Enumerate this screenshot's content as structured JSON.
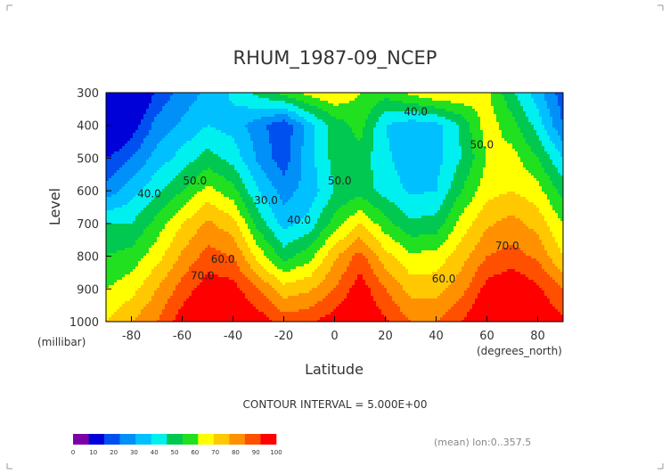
{
  "chart_data": {
    "type": "heatmap",
    "title": "RHUM_1987-09_NCEP",
    "xlabel": "Latitude",
    "ylabel": "Level",
    "y_units": "(millibar)",
    "x_units": "(degrees_north)",
    "x_ticks": [
      "-80",
      "-60",
      "-40",
      "-20",
      "0",
      "20",
      "40",
      "60",
      "80"
    ],
    "y_ticks": [
      "300",
      "400",
      "500",
      "600",
      "700",
      "800",
      "900",
      "1000"
    ],
    "xlim": [
      -90,
      90
    ],
    "ylim": [
      1000,
      300
    ],
    "contour_interval_text": "CONTOUR INTERVAL = 5.000E+00",
    "footnote": "(mean) lon:0..357.5",
    "colorbar": {
      "ticks": [
        "0",
        "10",
        "20",
        "30",
        "40",
        "50",
        "60",
        "70",
        "80",
        "90",
        "100"
      ],
      "colors": [
        "#7b00a8",
        "#0000d8",
        "#0050f0",
        "#0090f8",
        "#00c0ff",
        "#00f0f0",
        "#00c850",
        "#20e020",
        "#ffff00",
        "#ffc800",
        "#ff9000",
        "#ff5000",
        "#ff0000"
      ]
    },
    "contour_labels": [
      {
        "text": "40.0",
        "lat": 32,
        "lev": 370
      },
      {
        "text": "50.0",
        "lat": -55,
        "lev": 580
      },
      {
        "text": "50.0",
        "lat": 58,
        "lev": 470
      },
      {
        "text": "50.0",
        "lat": 2,
        "lev": 580
      },
      {
        "text": "40.0",
        "lat": -73,
        "lev": 620
      },
      {
        "text": "30.0",
        "lat": -27,
        "lev": 640
      },
      {
        "text": "40.0",
        "lat": -14,
        "lev": 700
      },
      {
        "text": "60.0",
        "lat": -44,
        "lev": 820
      },
      {
        "text": "70.0",
        "lat": -52,
        "lev": 870
      },
      {
        "text": "70.0",
        "lat": 68,
        "lev": 780
      },
      {
        "text": "60.0",
        "lat": 43,
        "lev": 880
      }
    ],
    "field_note_levels": [
      300,
      400,
      500,
      600,
      700,
      800,
      900,
      1000
    ],
    "field_note_lats": [
      -90,
      -80,
      -70,
      -60,
      -50,
      -40,
      -30,
      -20,
      -10,
      0,
      10,
      20,
      30,
      40,
      50,
      60,
      70,
      80,
      90
    ],
    "values": [
      [
        10,
        15,
        26,
        32,
        36,
        41,
        47,
        52,
        57,
        60,
        55,
        52,
        56,
        60,
        60,
        56,
        46,
        37,
        27
      ],
      [
        12,
        22,
        32,
        36,
        40,
        38,
        32,
        26,
        38,
        47,
        52,
        40,
        37,
        38,
        46,
        58,
        52,
        43,
        30
      ],
      [
        25,
        30,
        37,
        42,
        47,
        43,
        34,
        27,
        38,
        47,
        48,
        41,
        37,
        38,
        45,
        55,
        57,
        50,
        40
      ],
      [
        32,
        38,
        44,
        50,
        57,
        52,
        40,
        33,
        37,
        45,
        48,
        43,
        39,
        40,
        50,
        58,
        60,
        57,
        48
      ],
      [
        45,
        45,
        52,
        60,
        66,
        62,
        48,
        38,
        42,
        52,
        60,
        52,
        46,
        47,
        57,
        64,
        67,
        63,
        55
      ],
      [
        50,
        52,
        58,
        66,
        72,
        70,
        58,
        48,
        53,
        64,
        72,
        62,
        56,
        57,
        63,
        70,
        72,
        69,
        60
      ],
      [
        55,
        58,
        65,
        72,
        78,
        77,
        70,
        62,
        64,
        70,
        78,
        70,
        63,
        63,
        68,
        77,
        80,
        76,
        70
      ],
      [
        60,
        65,
        70,
        78,
        83,
        82,
        78,
        73,
        74,
        78,
        80,
        76,
        70,
        70,
        75,
        82,
        84,
        80,
        76
      ]
    ]
  }
}
